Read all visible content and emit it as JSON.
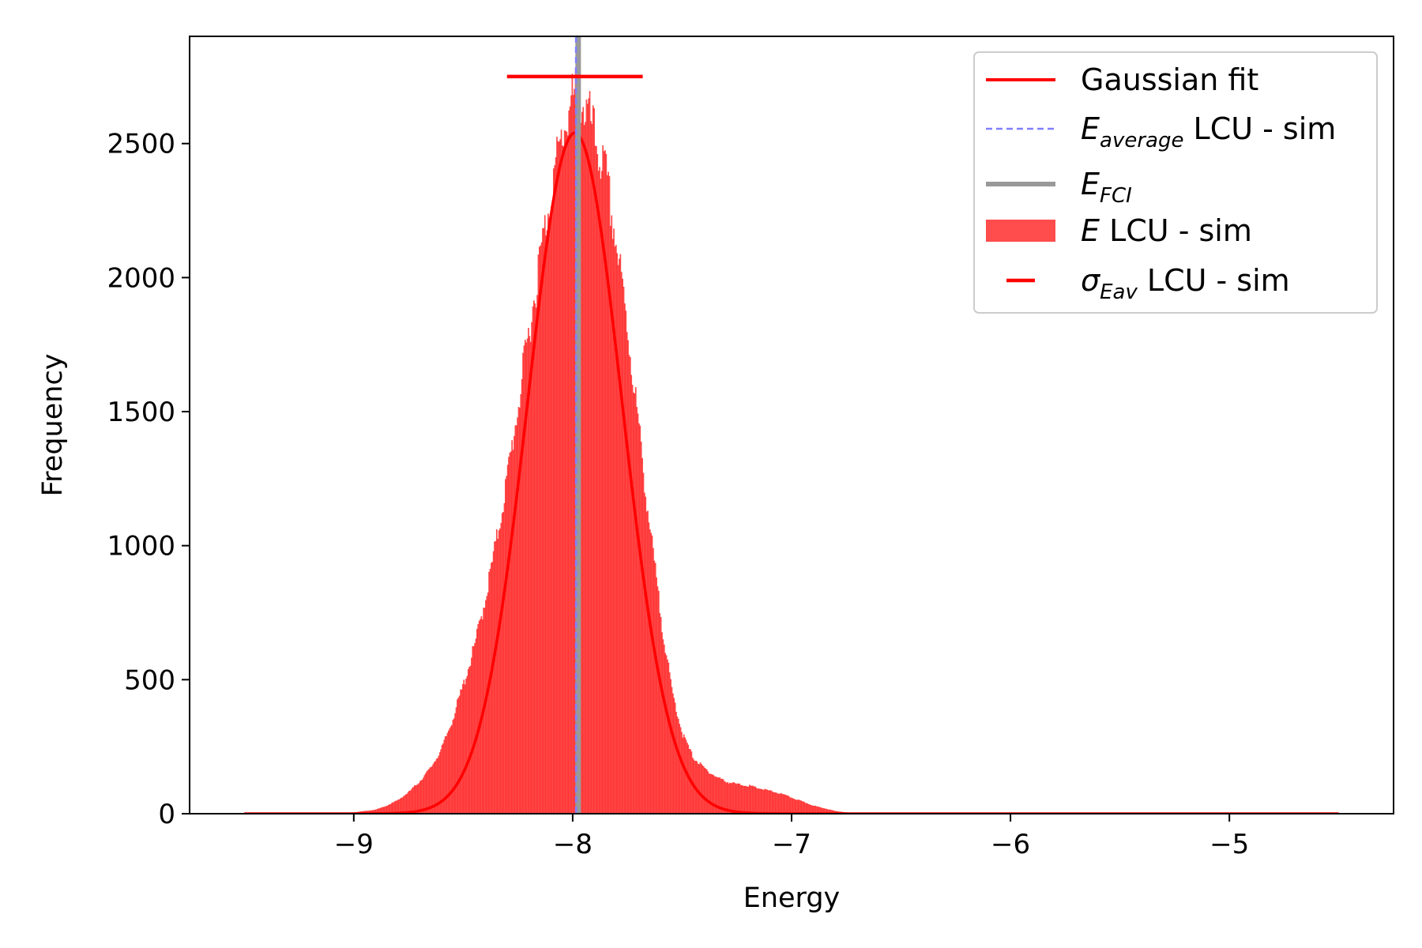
{
  "chart_data": {
    "type": "histogram",
    "xlabel": "Energy",
    "ylabel": "Frequency",
    "xlim": [
      -9.75,
      -4.25
    ],
    "ylim": [
      0,
      2900
    ],
    "xticks": [
      -9,
      -8,
      -7,
      -6,
      -5
    ],
    "xtick_labels": [
      "−9",
      "−8",
      "−7",
      "−6",
      "−5"
    ],
    "yticks": [
      0,
      500,
      1000,
      1500,
      2000,
      2500
    ],
    "ytick_labels": [
      "0",
      "500",
      "1000",
      "1500",
      "2000",
      "2500"
    ],
    "grid": false,
    "legend_position": "top-right",
    "histogram": {
      "name": "E LCU - sim",
      "color": "#ff0000",
      "opacity": 0.7,
      "range": [
        -9.5,
        -4.5
      ],
      "bins": [
        [
          -9.5,
          0
        ],
        [
          -9.1,
          2
        ],
        [
          -9.0,
          5
        ],
        [
          -8.9,
          15
        ],
        [
          -8.85,
          30
        ],
        [
          -8.8,
          50
        ],
        [
          -8.75,
          80
        ],
        [
          -8.7,
          120
        ],
        [
          -8.65,
          170
        ],
        [
          -8.6,
          240
        ],
        [
          -8.55,
          350
        ],
        [
          -8.5,
          480
        ],
        [
          -8.45,
          620
        ],
        [
          -8.4,
          800
        ],
        [
          -8.35,
          1010
        ],
        [
          -8.3,
          1250
        ],
        [
          -8.25,
          1520
        ],
        [
          -8.2,
          1800
        ],
        [
          -8.15,
          2070
        ],
        [
          -8.1,
          2320
        ],
        [
          -8.05,
          2520
        ],
        [
          -8.02,
          2620
        ],
        [
          -8.0,
          2660
        ],
        [
          -7.98,
          2680
        ],
        [
          -7.95,
          2640
        ],
        [
          -7.92,
          2580
        ],
        [
          -7.9,
          2520
        ],
        [
          -7.85,
          2380
        ],
        [
          -7.8,
          2120
        ],
        [
          -7.75,
          1810
        ],
        [
          -7.7,
          1450
        ],
        [
          -7.65,
          1080
        ],
        [
          -7.6,
          750
        ],
        [
          -7.55,
          470
        ],
        [
          -7.5,
          300
        ],
        [
          -7.45,
          210
        ],
        [
          -7.4,
          170
        ],
        [
          -7.35,
          140
        ],
        [
          -7.3,
          120
        ],
        [
          -7.25,
          110
        ],
        [
          -7.2,
          105
        ],
        [
          -7.15,
          95
        ],
        [
          -7.1,
          85
        ],
        [
          -7.05,
          75
        ],
        [
          -7.0,
          60
        ],
        [
          -6.95,
          45
        ],
        [
          -6.9,
          30
        ],
        [
          -6.85,
          20
        ],
        [
          -6.8,
          10
        ],
        [
          -6.75,
          5
        ],
        [
          -6.7,
          2
        ],
        [
          -6.5,
          0
        ],
        [
          -4.5,
          0
        ]
      ]
    },
    "gaussian_fit": {
      "name": "Gaussian fit",
      "color": "#ff0000",
      "mu": -7.99,
      "sigma": 0.215,
      "amplitude": 2540,
      "x_range": [
        -9.5,
        -4.5
      ]
    },
    "vertical_lines": [
      {
        "name": "E_FCI",
        "x": -7.975,
        "color": "#999999",
        "style": "solid"
      },
      {
        "name": "E_average LCU - sim",
        "x": -7.985,
        "color": "#8080ff",
        "style": "dashed"
      }
    ],
    "errorbar": {
      "name": "σ_Eav LCU - sim",
      "center": -7.99,
      "xerr": 0.31,
      "y": 2750,
      "color": "#ff0000"
    },
    "legend": [
      {
        "main": "Gaussian fit",
        "sub": "",
        "rest": "",
        "italic_main": false
      },
      {
        "main": "E",
        "sub": "average",
        "rest": " LCU - sim",
        "italic_main": true
      },
      {
        "main": "E",
        "sub": "FCI",
        "rest": "",
        "italic_main": true
      },
      {
        "main": "E",
        "sub": "",
        "rest": " LCU - sim",
        "italic_main": true
      },
      {
        "main": "σ",
        "sub": "Eav",
        "rest": " LCU - sim",
        "italic_main": true
      }
    ]
  }
}
